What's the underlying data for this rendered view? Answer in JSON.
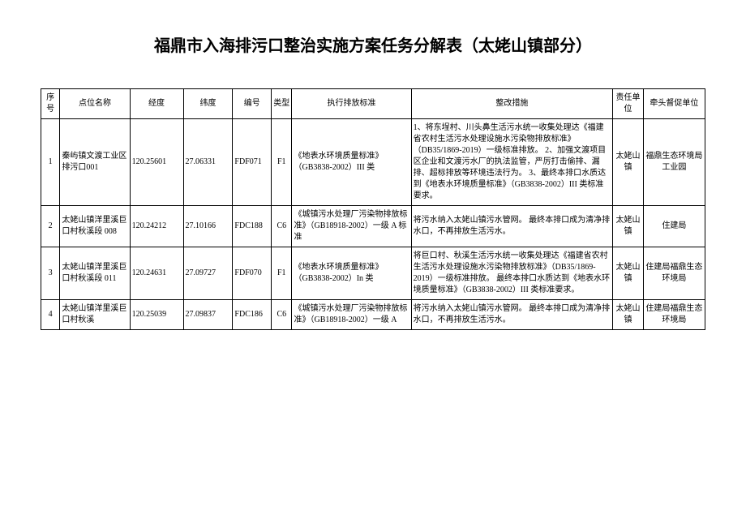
{
  "title": "福鼎市入海排污口整治实施方案任务分解表（太姥山镇部分）",
  "columns": [
    "序号",
    "点位名称",
    "经度",
    "纬度",
    "编号",
    "类型",
    "执行排放标准",
    "整改措施",
    "责任单位",
    "牵头督促单位"
  ],
  "rows": [
    {
      "seq": "1",
      "name": "秦屿镇文渡工业区排污口001",
      "lon": "120.25601",
      "lat": "27.06331",
      "code": "FDF071",
      "type": "F1",
      "std": "《地表水环境质量标准》（GB3838-2002）III 类",
      "act": "1、将东埕村、川头鼻生活污水统一收集处理达《福建省农村生活污水处理设施水污染物排放标准》（DB35/1869-2019）一级标准排放。\n2、加强文渡项目区企业和文渡污水厂的执法监管，严厉打击偷排、漏排、超标排放等环境违法行为。\n3、最终本排口水质达到《地表水环境质量标准》（GB3838-2002）III 类标准要求。",
      "unit": "太姥山镇",
      "sup": "福鼎生态环境局工业园"
    },
    {
      "seq": "2",
      "name": "太姥山镇洋里溪巨口村秋溪段 008",
      "lon": "120.24212",
      "lat": "27.10166",
      "code": "FDC188",
      "type": "C6",
      "std": "《城镇污水处理厂污染物排放标准》（GB18918-2002）一级 A 标准",
      "act": "将污水纳入太姥山镇污水管网。\n最终本排口成为清净排水口，不再排放生活污水。",
      "unit": "太姥山镇",
      "sup": "住建局"
    },
    {
      "seq": "3",
      "name": "太姥山镇洋里溪巨口村秋溪段 011",
      "lon": "120.24631",
      "lat": "27.09727",
      "code": "FDF070",
      "type": "F1",
      "std": "《地表水环境质量标准》（GB3838-2002）In 类",
      "act": "将巨口村、秋溪生活污水统一收集处理达《福建省农村生活污水处理设施水污染物排放标准》（DB35/1869-2019）一级标准排放。\n最终本排口水质达到《地表水环境质量标准》（GB3838-2002）III 类标准要求。",
      "unit": "太姥山镇",
      "sup": "住建局福鼎生态环境局"
    },
    {
      "seq": "4",
      "name": "太姥山镇洋里溪巨口村秋溪",
      "lon": "120.25039",
      "lat": "27.09837",
      "code": "FDC186",
      "type": "C6",
      "std": "《城镇污水处理厂污染物排放标准》（GB18918-2002）一级 A",
      "act": "将污水纳入太姥山镇污水管网。\n最终本排口成为清净排水口，不再排放生活污水。",
      "unit": "太姥山镇",
      "sup": "住建局福鼎生态环境局"
    }
  ]
}
